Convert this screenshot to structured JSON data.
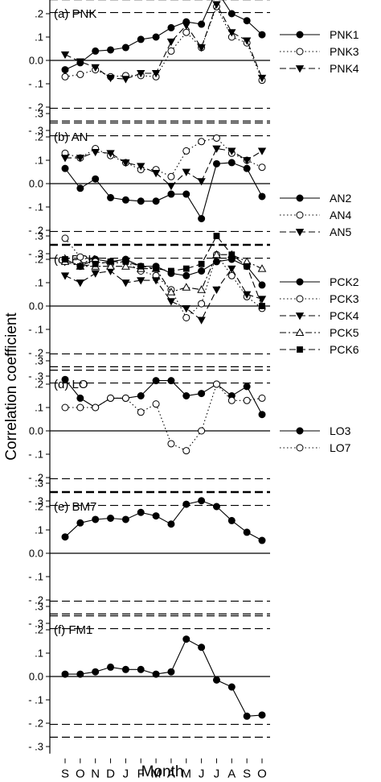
{
  "chart_data": {
    "type": "line",
    "ylabel": "Correlation coefficient",
    "xlabel": "Month",
    "x_tick_labels": [
      "S",
      "O",
      "N",
      "D",
      "J",
      "F",
      "M",
      "A",
      "M",
      "J",
      "J",
      "A",
      "S",
      "O"
    ],
    "y_tick_labels": [
      "- .3",
      "- .2",
      "- .1",
      "0.0",
      ".1",
      ".2",
      ".3"
    ],
    "ylim": [
      -0.3,
      0.3
    ],
    "significance_lines": [
      -0.26,
      -0.205,
      0.205,
      0.26
    ],
    "panels": [
      {
        "label": "(a) PNK",
        "series": [
          {
            "name": "PNK1",
            "marker": "filled-circle",
            "line": "solid",
            "values": [
              -0.04,
              -0.01,
              0.04,
              0.045,
              0.055,
              0.09,
              0.1,
              0.14,
              0.165,
              0.155,
              0.3,
              0.2,
              0.17,
              0.11
            ]
          },
          {
            "name": "PNK3",
            "marker": "open-circle",
            "line": "dotted",
            "values": [
              -0.07,
              -0.06,
              -0.04,
              -0.07,
              -0.065,
              -0.065,
              -0.07,
              0.04,
              0.12,
              0.055,
              0.23,
              0.1,
              0.075,
              -0.085
            ]
          },
          {
            "name": "PNK4",
            "marker": "filled-triangle-down",
            "line": "dashed",
            "values": [
              0.025,
              -0.005,
              -0.03,
              -0.075,
              -0.08,
              -0.055,
              -0.055,
              0.08,
              0.15,
              0.055,
              0.24,
              0.12,
              0.085,
              -0.075
            ]
          }
        ]
      },
      {
        "label": "(b) AN",
        "series": [
          {
            "name": "AN2",
            "marker": "filled-circle",
            "line": "solid",
            "values": [
              0.065,
              -0.02,
              0.02,
              -0.06,
              -0.07,
              -0.075,
              -0.075,
              -0.045,
              -0.045,
              -0.15,
              0.085,
              0.09,
              0.065,
              -0.055
            ]
          },
          {
            "name": "AN4",
            "marker": "open-circle",
            "line": "dotted",
            "values": [
              0.13,
              0.11,
              0.15,
              0.12,
              0.09,
              0.06,
              0.06,
              0.03,
              0.14,
              0.18,
              0.195,
              0.13,
              0.1,
              0.07
            ]
          },
          {
            "name": "AN5",
            "marker": "filled-triangle-down",
            "line": "dashed",
            "values": [
              0.11,
              0.11,
              0.135,
              0.13,
              0.09,
              0.075,
              0.045,
              -0.01,
              0.05,
              0.01,
              0.15,
              0.14,
              0.1,
              0.14
            ]
          }
        ]
      },
      {
        "label": "(c) PCK",
        "series": [
          {
            "name": "PCK2",
            "marker": "filled-circle",
            "line": "solid",
            "values": [
              0.2,
              0.17,
              0.2,
              0.19,
              0.2,
              0.17,
              0.17,
              0.14,
              0.13,
              0.15,
              0.19,
              0.2,
              0.17,
              0.09
            ]
          },
          {
            "name": "PCK3",
            "marker": "open-circle",
            "line": "dotted",
            "values": [
              0.29,
              0.21,
              0.19,
              0.18,
              0.19,
              0.15,
              0.13,
              0.07,
              -0.05,
              0.01,
              0.22,
              0.13,
              0.04,
              -0.01
            ]
          },
          {
            "name": "PCK4",
            "marker": "filled-triangle-down",
            "line": "dashed",
            "values": [
              0.13,
              0.1,
              0.14,
              0.15,
              0.1,
              0.11,
              0.11,
              0.02,
              -0.01,
              -0.06,
              0.07,
              0.16,
              0.05,
              0.03
            ]
          },
          {
            "name": "PCK5",
            "marker": "open-triangle-up",
            "line": "dashdot",
            "values": [
              0.19,
              0.17,
              0.17,
              0.17,
              0.17,
              0.16,
              0.16,
              0.06,
              0.08,
              0.07,
              0.22,
              0.22,
              0.19,
              0.16
            ]
          },
          {
            "name": "PCK6",
            "marker": "filled-square",
            "line": "dashed",
            "values": [
              0.2,
              0.17,
              0.18,
              0.19,
              0.19,
              0.17,
              0.16,
              0.15,
              0.16,
              0.18,
              0.3,
              0.22,
              0.17,
              0.0
            ]
          }
        ]
      },
      {
        "label": "(d) LO",
        "series": [
          {
            "name": "LO3",
            "marker": "filled-circle",
            "line": "solid",
            "values": [
              0.22,
              0.14,
              0.1,
              0.14,
              0.14,
              0.15,
              0.215,
              0.215,
              0.15,
              0.16,
              0.2,
              0.15,
              0.19,
              0.07
            ]
          },
          {
            "name": "LO7",
            "marker": "open-circle",
            "line": "dotted",
            "values": [
              0.1,
              0.1,
              0.1,
              0.14,
              0.14,
              0.08,
              0.115,
              -0.055,
              -0.085,
              0.0,
              0.2,
              0.13,
              0.13,
              0.14
            ]
          }
        ]
      },
      {
        "label": "(e) BM7",
        "series": [
          {
            "name": "BM7",
            "marker": "filled-circle",
            "line": "solid",
            "values": [
              0.07,
              0.13,
              0.145,
              0.15,
              0.145,
              0.175,
              0.16,
              0.125,
              0.21,
              0.225,
              0.2,
              0.14,
              0.09,
              0.055
            ]
          }
        ]
      },
      {
        "label": "(f) FM1",
        "series": [
          {
            "name": "FM1",
            "marker": "filled-circle",
            "line": "solid",
            "values": [
              0.01,
              0.01,
              0.02,
              0.04,
              0.03,
              0.03,
              0.01,
              0.02,
              0.16,
              0.125,
              -0.015,
              -0.045,
              -0.17,
              -0.165
            ]
          }
        ]
      }
    ]
  }
}
